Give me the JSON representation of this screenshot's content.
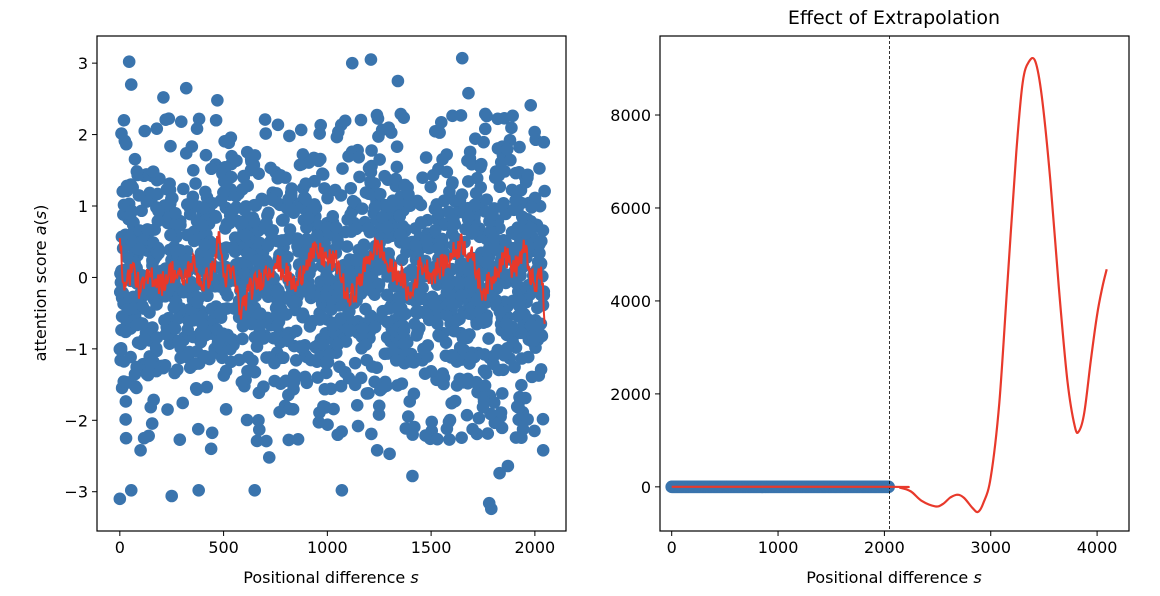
{
  "chart_data": [
    {
      "type": "scatter",
      "title": "",
      "xlabel": "Positional difference s",
      "ylabel": "attention score a(s)",
      "xlim": [
        -110,
        2150
      ],
      "ylim": [
        -3.55,
        3.38
      ],
      "xticks": [
        0,
        500,
        1000,
        1500,
        2000
      ],
      "yticks": [
        -3,
        -2,
        -1,
        0,
        1,
        2,
        3
      ],
      "xtick_labels": [
        "0",
        "500",
        "1000",
        "1500",
        "2000"
      ],
      "ytick_labels": [
        "−3",
        "−2",
        "−1",
        "0",
        "1",
        "2",
        "3"
      ],
      "grid": false,
      "series": [
        {
          "kind": "scatter",
          "color": "#3a74ad",
          "description_points": [
            [
              0,
              -3.1
            ],
            [
              20,
              2.2
            ],
            [
              30,
              -2.25
            ],
            [
              45,
              3.02
            ],
            [
              55,
              2.7
            ],
            [
              55,
              -2.98
            ],
            [
              100,
              -2.42
            ],
            [
              120,
              2.05
            ],
            [
              210,
              2.52
            ],
            [
              230,
              -1.85
            ],
            [
              250,
              -3.06
            ],
            [
              320,
              2.65
            ],
            [
              380,
              -2.98
            ],
            [
              440,
              -2.4
            ],
            [
              470,
              2.48
            ],
            [
              650,
              -2.98
            ],
            [
              700,
              2.21
            ],
            [
              720,
              -2.52
            ],
            [
              1070,
              -2.98
            ],
            [
              1120,
              3.0
            ],
            [
              1210,
              3.05
            ],
            [
              1240,
              -2.42
            ],
            [
              1300,
              -2.47
            ],
            [
              1340,
              2.75
            ],
            [
              1410,
              -2.78
            ],
            [
              1650,
              3.07
            ],
            [
              1680,
              2.58
            ],
            [
              1780,
              -3.16
            ],
            [
              1790,
              -3.24
            ],
            [
              1830,
              -2.74
            ],
            [
              1870,
              -2.64
            ],
            [
              1980,
              2.41
            ],
            [
              2040,
              -2.42
            ]
          ],
          "x_range": [
            0,
            2047
          ],
          "y_distribution": "dense noise between -2 and 2, sparse out to ±3"
        },
        {
          "kind": "line",
          "color": "#e8392b",
          "x_range": [
            0,
            2047
          ],
          "y_description": "smoothed running mean fluctuating between about -0.6 and 0.6",
          "points": [
            [
              0,
              0.55
            ],
            [
              10,
              0.1
            ],
            [
              30,
              -0.1
            ],
            [
              60,
              0.15
            ],
            [
              100,
              -0.2
            ],
            [
              150,
              0.05
            ],
            [
              200,
              -0.1
            ],
            [
              250,
              0.1
            ],
            [
              300,
              -0.05
            ],
            [
              350,
              0.2
            ],
            [
              400,
              -0.1
            ],
            [
              450,
              0.1
            ],
            [
              480,
              0.62
            ],
            [
              500,
              0.0
            ],
            [
              550,
              0.05
            ],
            [
              580,
              -0.5
            ],
            [
              620,
              -0.2
            ],
            [
              700,
              0.05
            ],
            [
              750,
              0.2
            ],
            [
              800,
              0.05
            ],
            [
              850,
              -0.15
            ],
            [
              900,
              0.25
            ],
            [
              950,
              0.35
            ],
            [
              1000,
              0.25
            ],
            [
              1050,
              0.2
            ],
            [
              1100,
              -0.35
            ],
            [
              1150,
              -0.1
            ],
            [
              1200,
              0.3
            ],
            [
              1250,
              0.45
            ],
            [
              1300,
              0.1
            ],
            [
              1350,
              0.05
            ],
            [
              1400,
              -0.3
            ],
            [
              1450,
              0.2
            ],
            [
              1500,
              0.05
            ],
            [
              1550,
              0.15
            ],
            [
              1600,
              0.3
            ],
            [
              1650,
              0.5
            ],
            [
              1700,
              0.25
            ],
            [
              1750,
              -0.2
            ],
            [
              1800,
              0.0
            ],
            [
              1850,
              0.35
            ],
            [
              1900,
              0.1
            ],
            [
              1950,
              0.4
            ],
            [
              2000,
              -0.2
            ],
            [
              2030,
              0.15
            ],
            [
              2047,
              -0.65
            ]
          ]
        }
      ]
    },
    {
      "type": "line",
      "title": "Effect of Extrapolation",
      "xlabel": "Positional difference s",
      "ylabel": "",
      "xlim": [
        -110,
        4300
      ],
      "ylim": [
        -950,
        9700
      ],
      "xticks": [
        0,
        1000,
        2000,
        3000,
        4000
      ],
      "yticks": [
        0,
        2000,
        4000,
        6000,
        8000
      ],
      "xtick_labels": [
        "0",
        "1000",
        "2000",
        "3000",
        "4000"
      ],
      "ytick_labels": [
        "0",
        "2000",
        "4000",
        "6000",
        "8000"
      ],
      "grid": false,
      "vline": {
        "x": 2048,
        "style": "dashed",
        "color": "#000000"
      },
      "series": [
        {
          "kind": "scatter",
          "color": "#3a74ad",
          "x_range": [
            0,
            2047
          ],
          "y_value": 0,
          "description": "original attention scores, compressed to zero at this scale"
        },
        {
          "kind": "line",
          "color": "#e8392b",
          "points": [
            [
              0,
              0
            ],
            [
              2048,
              0
            ],
            [
              2150,
              -20
            ],
            [
              2250,
              -100
            ],
            [
              2350,
              -300
            ],
            [
              2480,
              -420
            ],
            [
              2550,
              -370
            ],
            [
              2620,
              -230
            ],
            [
              2690,
              -170
            ],
            [
              2750,
              -240
            ],
            [
              2830,
              -460
            ],
            [
              2880,
              -540
            ],
            [
              2930,
              -350
            ],
            [
              3000,
              200
            ],
            [
              3080,
              1800
            ],
            [
              3160,
              4500
            ],
            [
              3240,
              7200
            ],
            [
              3300,
              8700
            ],
            [
              3360,
              9150
            ],
            [
              3420,
              9150
            ],
            [
              3480,
              8400
            ],
            [
              3560,
              6600
            ],
            [
              3640,
              4300
            ],
            [
              3720,
              2300
            ],
            [
              3790,
              1300
            ],
            [
              3830,
              1200
            ],
            [
              3880,
              1600
            ],
            [
              3940,
              2700
            ],
            [
              4000,
              3700
            ],
            [
              4050,
              4300
            ],
            [
              4090,
              4680
            ]
          ]
        }
      ]
    }
  ]
}
